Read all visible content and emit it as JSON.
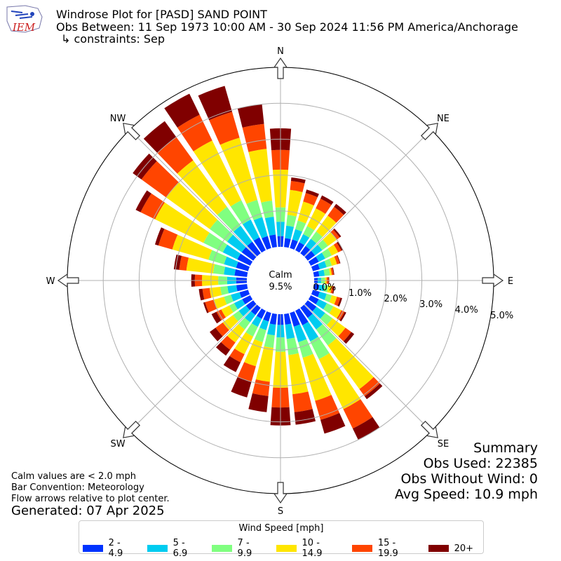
{
  "logo": {
    "text": "IEM",
    "color": "#cc2222"
  },
  "title": {
    "line1": "Windrose Plot for [PASD] SAND POINT",
    "line2": "Obs Between: 11 Sep 1973 10:00 AM - 30 Sep 2024 11:56 PM America/Anchorage",
    "line3": "↳ constraints: Sep"
  },
  "calm": {
    "label": "Calm",
    "value": "9.5%"
  },
  "notes": {
    "calm_def": "Calm values are < 2.0 mph",
    "bar_convention": "Bar Convention: Meteorology",
    "flow_arrows": "Flow arrows relative to plot center."
  },
  "generated": "Generated: 07 Apr 2025",
  "summary": {
    "heading": "Summary",
    "obs_used": "Obs Used: 22385",
    "obs_without_wind": "Obs Without Wind: 0",
    "avg_speed": "Avg Speed: 10.9 mph"
  },
  "legend": {
    "title": "Wind Speed [mph]"
  },
  "chart_data": {
    "type": "windrose",
    "radial_unit": "%",
    "rlim": [
      0,
      5.0
    ],
    "radial_ticks": [
      0.0,
      1.0,
      2.0,
      3.0,
      4.0,
      5.0
    ],
    "radial_tick_labels": [
      "0.0%",
      "1.0%",
      "2.0%",
      "3.0%",
      "4.0%",
      "5.0%"
    ],
    "direction_labels": [
      "N",
      "NE",
      "E",
      "SE",
      "S",
      "SW",
      "W",
      "NW"
    ],
    "grid": true,
    "legend_position": "bottom-center",
    "bins": [
      {
        "name": "2 - 4.9",
        "color": "#0033ff"
      },
      {
        "name": "5 - 6.9",
        "color": "#00ccf0"
      },
      {
        "name": "7 - 9.9",
        "color": "#80ff80"
      },
      {
        "name": "10 - 14.9",
        "color": "#ffe600"
      },
      {
        "name": "15 - 19.9",
        "color": "#ff4500"
      },
      {
        "name": "20+",
        "color": "#800000"
      }
    ],
    "directions": [
      0,
      10,
      20,
      30,
      40,
      50,
      60,
      70,
      80,
      90,
      100,
      110,
      120,
      130,
      140,
      150,
      160,
      170,
      180,
      190,
      200,
      210,
      220,
      230,
      240,
      250,
      260,
      270,
      280,
      290,
      300,
      310,
      320,
      330,
      340,
      350
    ],
    "cumulative": [
      [
        0.3,
        0.7,
        1.1,
        2.15,
        2.7,
        3.3
      ],
      [
        0.25,
        0.6,
        0.9,
        1.6,
        1.85,
        1.95
      ],
      [
        0.25,
        0.55,
        0.8,
        1.35,
        1.6,
        1.7
      ],
      [
        0.25,
        0.5,
        0.75,
        1.3,
        1.6,
        1.7
      ],
      [
        0.25,
        0.5,
        0.75,
        1.3,
        1.6,
        1.7
      ],
      [
        0.25,
        0.5,
        0.7,
        1.0,
        1.1,
        1.15
      ],
      [
        0.25,
        0.45,
        0.65,
        0.85,
        0.95,
        1.0
      ],
      [
        0.2,
        0.4,
        0.55,
        0.7,
        0.78,
        0.8
      ],
      [
        0.15,
        0.3,
        0.45,
        0.5,
        0.55,
        0.57
      ],
      [
        0.1,
        0.2,
        0.3,
        0.35,
        0.4,
        0.42
      ],
      [
        0.15,
        0.3,
        0.4,
        0.5,
        0.55,
        0.58
      ],
      [
        0.2,
        0.4,
        0.55,
        0.7,
        0.8,
        0.85
      ],
      [
        0.25,
        0.5,
        0.7,
        0.95,
        1.05,
        1.1
      ],
      [
        0.3,
        0.6,
        0.85,
        1.3,
        1.5,
        1.6
      ],
      [
        0.35,
        0.75,
        1.3,
        2.8,
        3.05,
        3.15
      ],
      [
        0.45,
        0.95,
        1.5,
        3.05,
        3.65,
        4.0
      ],
      [
        0.4,
        0.85,
        1.3,
        2.55,
        3.1,
        3.5
      ],
      [
        0.3,
        0.7,
        1.15,
        2.25,
        2.75,
        3.1
      ],
      [
        0.3,
        0.65,
        1.05,
        2.05,
        2.6,
        3.1
      ],
      [
        0.3,
        0.6,
        0.95,
        1.9,
        2.3,
        2.75
      ],
      [
        0.25,
        0.5,
        0.85,
        1.55,
        2.0,
        2.45
      ],
      [
        0.25,
        0.5,
        0.8,
        1.35,
        1.6,
        1.9
      ],
      [
        0.25,
        0.5,
        0.75,
        1.2,
        1.45,
        1.65
      ],
      [
        0.25,
        0.5,
        0.7,
        1.05,
        1.3,
        1.5
      ],
      [
        0.25,
        0.5,
        0.65,
        0.9,
        1.05,
        1.2
      ],
      [
        0.25,
        0.5,
        0.7,
        1.0,
        1.25,
        1.3
      ],
      [
        0.3,
        0.55,
        0.75,
        1.05,
        1.25,
        1.35
      ],
      [
        0.3,
        0.55,
        0.8,
        1.25,
        1.45,
        1.55
      ],
      [
        0.35,
        0.65,
        0.95,
        1.7,
        1.9,
        2.05
      ],
      [
        0.35,
        0.7,
        1.15,
        2.2,
        2.6,
        2.7
      ],
      [
        0.4,
        0.85,
        1.45,
        2.95,
        3.4,
        3.55
      ],
      [
        0.4,
        0.9,
        1.5,
        3.0,
        3.85,
        4.15
      ],
      [
        0.4,
        0.95,
        1.6,
        3.2,
        4.0,
        4.55
      ],
      [
        0.4,
        0.95,
        1.55,
        3.4,
        4.2,
        4.85
      ],
      [
        0.35,
        0.9,
        1.4,
        3.2,
        3.95,
        4.7
      ],
      [
        0.35,
        0.85,
        1.3,
        2.75,
        3.45,
        4.0
      ]
    ]
  }
}
